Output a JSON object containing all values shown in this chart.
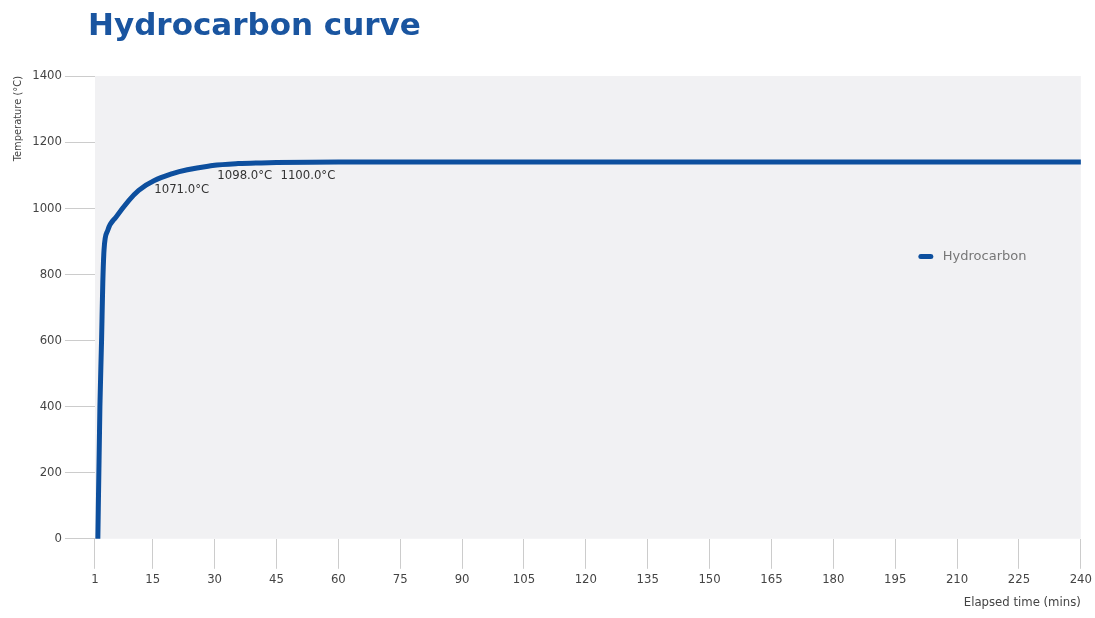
{
  "chart_data": {
    "type": "line",
    "title": "Hydrocarbon curve",
    "xlabel": "Elapsed time (mins)",
    "ylabel": "Temperature (°C)",
    "x": [
      1.7,
      2.2,
      2.6,
      2.9,
      3.2,
      4.1,
      6.1,
      11.6,
      19.8,
      29.5,
      35.7,
      45,
      60,
      240
    ],
    "series": [
      {
        "name": "Hydrocarbon",
        "color": "#0d4f9e",
        "values": [
          0,
          400,
          600,
          775,
          874,
          933,
          973,
          1054,
          1105,
          1129,
          1135,
          1138,
          1140,
          1140
        ]
      }
    ],
    "xlim": [
      1,
      240
    ],
    "xticks": [
      1,
      15,
      30,
      45,
      60,
      75,
      90,
      105,
      120,
      135,
      150,
      165,
      180,
      195,
      210,
      225,
      240
    ],
    "ylim": [
      0,
      1400
    ],
    "yticks": [
      0,
      200,
      400,
      600,
      800,
      1000,
      1200,
      1400
    ],
    "annotations": [
      "1071.0°C",
      "1098.0°C",
      "1100.0°C"
    ],
    "grid": false,
    "legend": "right",
    "marker": "none",
    "line_style": "solid"
  }
}
